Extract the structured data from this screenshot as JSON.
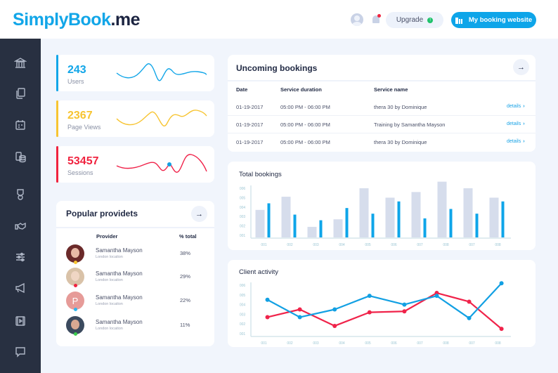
{
  "brand": {
    "logo_part1": "SimplyBook",
    "logo_part2": ".me"
  },
  "header": {
    "avatar_icon": "user-avatar-icon",
    "notification_icon": "bell-icon",
    "upgrade_label": "Upgrade",
    "upgrade_icon": "arrow-up-circle-icon",
    "my_booking_label": "My booking website",
    "my_booking_icon": "storefront-icon"
  },
  "sidebar": {
    "items": [
      {
        "name": "bank-icon"
      },
      {
        "name": "documents-icon"
      },
      {
        "name": "calendar-icon"
      },
      {
        "name": "coins-icon"
      },
      {
        "name": "award-icon"
      },
      {
        "name": "handshake-icon"
      },
      {
        "name": "sliders-icon"
      },
      {
        "name": "megaphone-icon"
      },
      {
        "name": "video-icon"
      },
      {
        "name": "chat-icon"
      }
    ]
  },
  "stats": [
    {
      "value": "243",
      "label": "Users",
      "color": "#12a6e8"
    },
    {
      "value": "2367",
      "label": "Page Views",
      "color": "#f7c431"
    },
    {
      "value": "53457",
      "label": "Sessions",
      "color": "#f0233f"
    }
  ],
  "providers": {
    "title": "Popular providets",
    "col_provider": "Provider",
    "col_total": "% total",
    "rows": [
      {
        "name": "Samantha Mayson",
        "location": "London location",
        "pct": "38%",
        "status_color": "#f7c431",
        "initial": ""
      },
      {
        "name": "Samantha Mayson",
        "location": "London location",
        "pct": "29%",
        "status_color": "#f0233f",
        "initial": ""
      },
      {
        "name": "Samantha Mayson",
        "location": "London location",
        "pct": "22%",
        "status_color": "#2db8f0",
        "initial": "P"
      },
      {
        "name": "Samantha Mayson",
        "location": "London location",
        "pct": "11%",
        "status_color": "#3ccf4e",
        "initial": ""
      }
    ]
  },
  "bookings": {
    "title": "Uncoming bookings",
    "columns": [
      "Date",
      "Service duration",
      "Service name"
    ],
    "rows": [
      {
        "date": "01-19-2017",
        "duration": "05:00 PM - 06:00 PM",
        "service": "thera 30 by Dominique",
        "link": "details"
      },
      {
        "date": "01-19-2017",
        "duration": "05:00 PM - 06:00 PM",
        "service": "Training by Samantha Mayson",
        "link": "details"
      },
      {
        "date": "01-19-2017",
        "duration": "05:00 PM - 06:00 PM",
        "service": "thera 30 by Dominique",
        "link": "details"
      }
    ]
  },
  "chart_data": [
    {
      "type": "bar",
      "title": "Total bookings",
      "categories": [
        "001",
        "002",
        "003",
        "004",
        "005",
        "006",
        "007",
        "008",
        "007",
        "008"
      ],
      "yticks": [
        "001",
        "002",
        "003",
        "004",
        "005",
        "006"
      ],
      "ylim": [
        1,
        6
      ],
      "series": [
        {
          "name": "series-a",
          "color": "#d6ddec",
          "values": [
            3.7,
            5.1,
            1.9,
            2.7,
            6.0,
            5.0,
            5.6,
            6.7,
            6.0,
            5.0
          ]
        },
        {
          "name": "series-b",
          "color": "#0ea5e9",
          "values": [
            4.4,
            3.2,
            2.6,
            3.9,
            3.3,
            4.6,
            2.8,
            3.8,
            3.3,
            4.6
          ]
        }
      ],
      "grid": false
    },
    {
      "type": "line",
      "title": "Client activity",
      "categories": [
        "001",
        "002",
        "003",
        "004",
        "005",
        "006",
        "007",
        "008",
        "007",
        "008"
      ],
      "yticks": [
        "001",
        "002",
        "003",
        "004",
        "005",
        "006"
      ],
      "ylim": [
        1,
        6
      ],
      "series": [
        {
          "name": "blue",
          "color": "#12a0e3",
          "x": [
            0.1,
            1.4,
            2.8,
            4.2,
            5.6,
            6.9,
            8.2,
            9.5
          ],
          "values": [
            4.5,
            2.7,
            3.5,
            4.9,
            4.0,
            4.9,
            2.6,
            6.2
          ]
        },
        {
          "name": "red",
          "color": "#f0234a",
          "x": [
            0.1,
            1.4,
            2.8,
            4.2,
            5.6,
            6.9,
            8.2,
            9.5
          ],
          "values": [
            2.7,
            3.5,
            1.8,
            3.2,
            3.3,
            5.2,
            4.3,
            1.5
          ]
        }
      ],
      "grid": false
    }
  ]
}
